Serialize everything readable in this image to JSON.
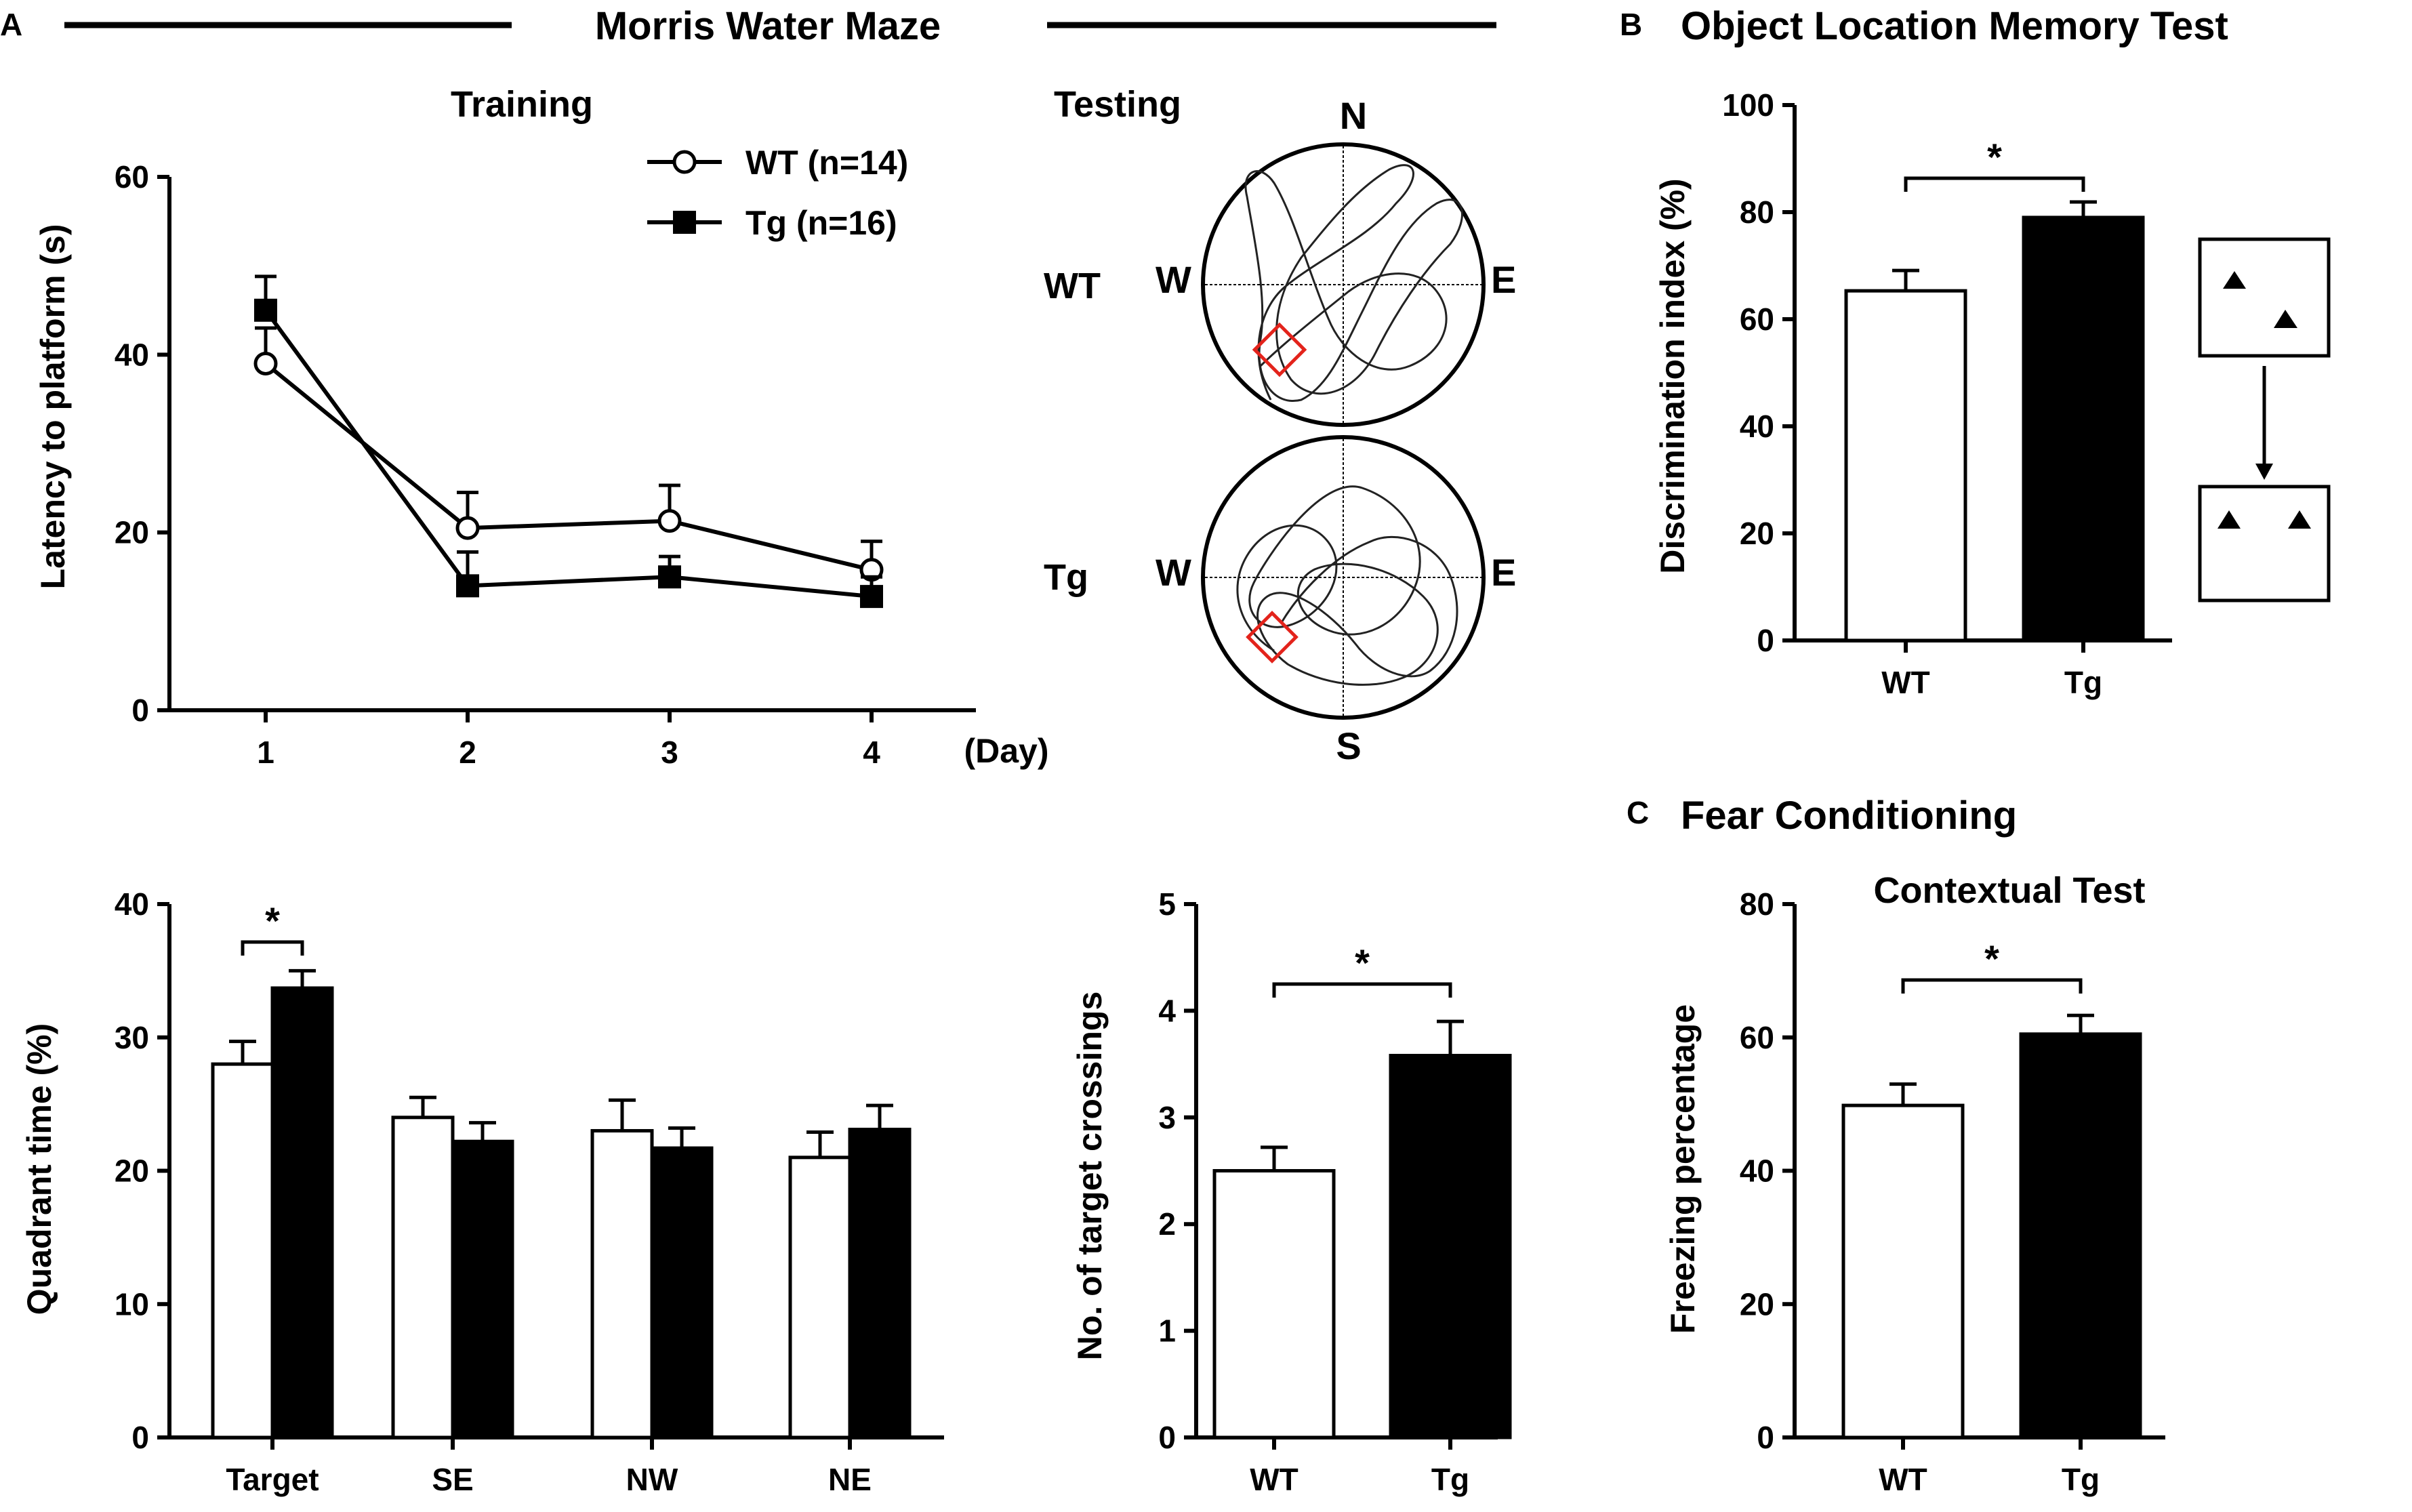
{
  "chart_data": [
    {
      "id": "training",
      "type": "line",
      "panel": "A",
      "panel_title": "Morris Water Maze",
      "title": "Training",
      "xlabel": "(Day)",
      "ylabel": "Latency to platform (s)",
      "x": [
        1,
        2,
        3,
        4
      ],
      "x_tick_labels": [
        "1",
        "2",
        "3",
        "4"
      ],
      "ylim": [
        0,
        60
      ],
      "y_ticks": [
        0,
        20,
        40,
        60
      ],
      "y_tick_labels": [
        "0",
        "20",
        "40",
        "60"
      ],
      "legend_position": "top-right",
      "series": [
        {
          "name": "WT (n=14)",
          "marker": "open-circle",
          "values": [
            39,
            20.5,
            21.3,
            15.8
          ],
          "errors": [
            4,
            4,
            4,
            3.2
          ]
        },
        {
          "name": "Tg (n=16)",
          "marker": "filled-square",
          "values": [
            45,
            14,
            15,
            12.8
          ],
          "errors": [
            3.8,
            3.8,
            2.3,
            2.2
          ]
        }
      ]
    },
    {
      "id": "testing",
      "type": "other",
      "title": "Testing",
      "rows": [
        "WT",
        "Tg"
      ],
      "compass": {
        "n": "N",
        "s": "S",
        "e": "E",
        "w": "W"
      }
    },
    {
      "id": "quadrant",
      "type": "bar",
      "ylabel": "Quadrant time (%)",
      "categories": [
        "Target",
        "SE",
        "NW",
        "NE"
      ],
      "ylim": [
        0,
        40
      ],
      "y_ticks": [
        0,
        10,
        20,
        30,
        40
      ],
      "y_tick_labels": [
        "0",
        "10",
        "20",
        "30",
        "40"
      ],
      "series": [
        {
          "name": "WT",
          "fill": "white",
          "values": [
            28,
            24,
            23,
            21
          ],
          "errors": [
            1.7,
            1.5,
            2.3,
            1.9
          ]
        },
        {
          "name": "Tg",
          "fill": "black",
          "values": [
            33.7,
            22.2,
            21.7,
            23.1
          ],
          "errors": [
            1.3,
            1.4,
            1.5,
            1.8
          ]
        }
      ],
      "significance": [
        {
          "category": "Target",
          "label": "*"
        }
      ]
    },
    {
      "id": "crossings",
      "type": "bar",
      "ylabel": "No. of target crossings",
      "categories": [
        "WT",
        "Tg"
      ],
      "ylim": [
        0,
        5
      ],
      "y_ticks": [
        0,
        1,
        2,
        3,
        4,
        5
      ],
      "y_tick_labels": [
        "0",
        "1",
        "2",
        "3",
        "4",
        "5"
      ],
      "values": [
        2.5,
        3.58
      ],
      "errors": [
        0.22,
        0.32
      ],
      "fills": [
        "white",
        "black"
      ],
      "significance": "*"
    },
    {
      "id": "object-location",
      "type": "bar",
      "panel": "B",
      "title": "Object Location Memory Test",
      "ylabel": "Discrimination index (%)",
      "categories": [
        "WT",
        "Tg"
      ],
      "ylim": [
        0,
        100
      ],
      "y_ticks": [
        0,
        20,
        40,
        60,
        80,
        100
      ],
      "y_tick_labels": [
        "0",
        "20",
        "40",
        "60",
        "80",
        "100"
      ],
      "values": [
        65.3,
        79
      ],
      "errors": [
        3.8,
        2.9
      ],
      "fills": [
        "white",
        "black"
      ],
      "significance": "*"
    },
    {
      "id": "fear",
      "type": "bar",
      "panel": "C",
      "title": "Fear Conditioning",
      "subtitle": "Contextual Test",
      "ylabel": "Freezing percentage",
      "categories": [
        "WT",
        "Tg"
      ],
      "ylim": [
        0,
        80
      ],
      "y_ticks": [
        0,
        20,
        40,
        60,
        80
      ],
      "y_tick_labels": [
        "0",
        "20",
        "40",
        "60",
        "80"
      ],
      "values": [
        49.8,
        60.5
      ],
      "errors": [
        3.2,
        2.8
      ],
      "fills": [
        "white",
        "black"
      ],
      "significance": "*"
    }
  ]
}
